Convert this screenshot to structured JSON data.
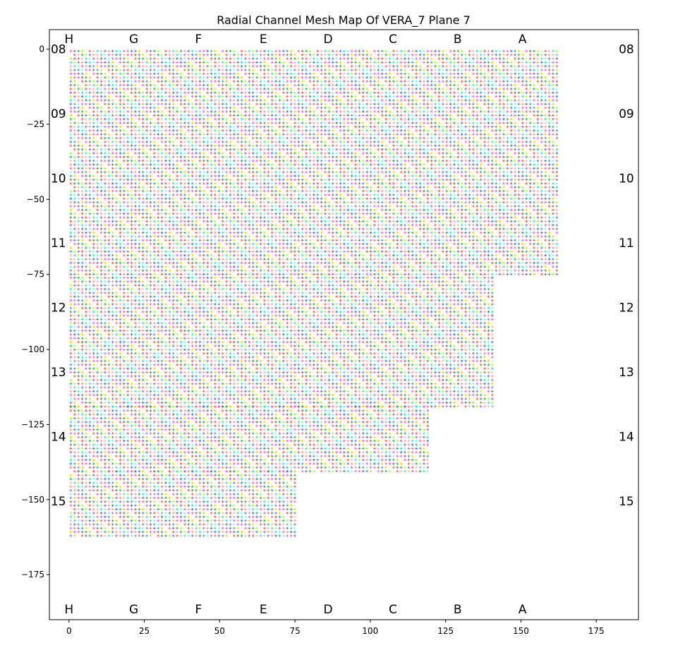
{
  "chart_data": {
    "type": "heatmap",
    "title": "Radial Channel Mesh Map Of VERA_7 Plane 7",
    "xlabel": "",
    "ylabel": "",
    "xlim": [
      -6.5,
      189
    ],
    "ylim": [
      -190,
      6.5
    ],
    "x_ticks": [
      0,
      25,
      50,
      75,
      100,
      125,
      150,
      175
    ],
    "y_ticks": [
      0,
      -25,
      -50,
      -75,
      -100,
      -125,
      -150,
      -175
    ],
    "column_labels": [
      {
        "label": "H",
        "x": 0
      },
      {
        "label": "G",
        "x": 21.5
      },
      {
        "label": "F",
        "x": 43
      },
      {
        "label": "E",
        "x": 64.5
      },
      {
        "label": "D",
        "x": 86
      },
      {
        "label": "C",
        "x": 107.5
      },
      {
        "label": "B",
        "x": 129
      },
      {
        "label": "A",
        "x": 150.5
      }
    ],
    "row_labels": [
      {
        "label": "08",
        "y": 0
      },
      {
        "label": "09",
        "y": -21.5
      },
      {
        "label": "10",
        "y": -43
      },
      {
        "label": "11",
        "y": -64.5
      },
      {
        "label": "12",
        "y": -86
      },
      {
        "label": "13",
        "y": -107.5
      },
      {
        "label": "14",
        "y": -129
      },
      {
        "label": "15",
        "y": -150.5
      }
    ],
    "mesh_rows": [
      {
        "y_top": 0,
        "y_bottom": -75.5,
        "x_left": 0,
        "x_right": 161.5
      },
      {
        "y_top": -75.5,
        "y_bottom": -118.5,
        "x_left": 0,
        "x_right": 140
      },
      {
        "y_top": -118.5,
        "y_bottom": -140,
        "x_left": 0,
        "x_right": 118.5
      },
      {
        "y_top": -140,
        "y_bottom": -161.5,
        "x_left": 0,
        "x_right": 75.5
      }
    ],
    "cell_pitch": 1.26,
    "palette": [
      "#ff69b4",
      "#3cb371",
      "#9370db",
      "#4682b4",
      "#ffd700",
      "#ff6347",
      "#40e0d0",
      "#da70d6",
      "#8b7d6b",
      "#adff2f",
      "#ffa07a",
      "#6495ed",
      "#f5f5f5",
      "#ffb6c1",
      "#7fffd4"
    ],
    "grid": false,
    "legend": "none"
  }
}
